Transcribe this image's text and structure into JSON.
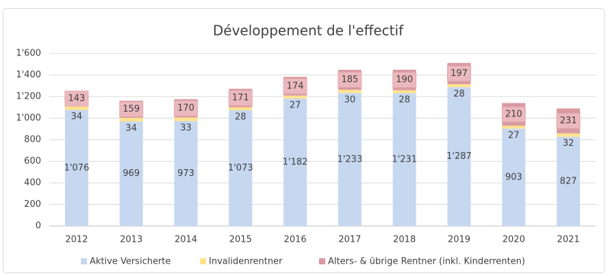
{
  "chart_data": {
    "type": "stacked_bar",
    "title": "Développement de l'effectif",
    "categories": [
      "2012",
      "2013",
      "2014",
      "2015",
      "2016",
      "2017",
      "2018",
      "2019",
      "2020",
      "2021"
    ],
    "series": [
      {
        "name": "Aktive Versicherte",
        "color": "#c6d7f0",
        "values": [
          1076,
          969,
          973,
          1073,
          1182,
          1233,
          1231,
          1287,
          903,
          827
        ],
        "value_labels": [
          "1'076",
          "969",
          "973",
          "1'073",
          "1'182",
          "1'233",
          "1'231",
          "1'287",
          "903",
          "827"
        ]
      },
      {
        "name": "Invalidenrentner",
        "color": "#ffe38f",
        "values": [
          34,
          34,
          33,
          28,
          27,
          30,
          28,
          28,
          27,
          32
        ]
      },
      {
        "name": "Alters- & übrige Rentner (inkl. Kinderrenten)",
        "color": "#d99aa2",
        "values": [
          143,
          159,
          170,
          171,
          174,
          185,
          190,
          197,
          210,
          231
        ]
      }
    ],
    "ylim": [
      0,
      1600
    ],
    "yticks": [
      0,
      200,
      400,
      600,
      800,
      {
        "value": 1000,
        "label": "1'000"
      },
      {
        "value": 1200,
        "label": "1'200"
      },
      {
        "value": 1400,
        "label": "1'400"
      },
      {
        "value": 1600,
        "label": "1'600"
      }
    ],
    "grid": true,
    "legend": "bottom"
  }
}
